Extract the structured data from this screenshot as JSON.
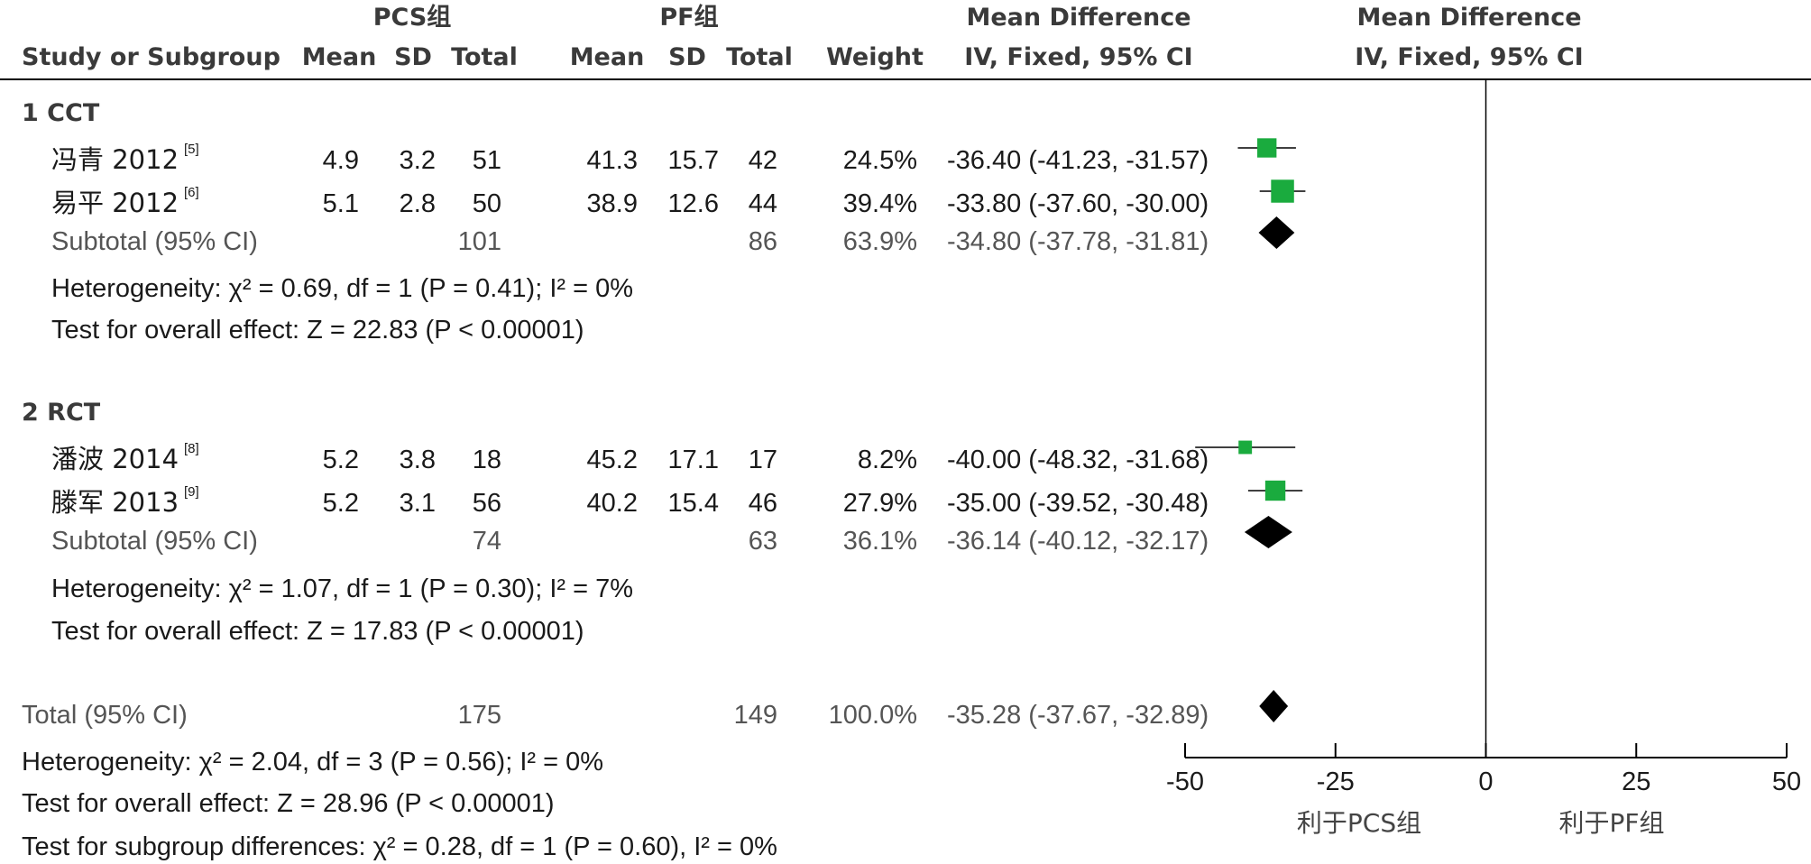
{
  "chart_data": {
    "type": "forest",
    "headers": {
      "group1": "PCS组",
      "group2": "PF组",
      "md_title": "Mean Difference",
      "md_method": "IV, Fixed, 95% CI",
      "plot_title": "Mean Difference",
      "plot_method": "IV, Fixed, 95% CI",
      "study_col": "Study or Subgroup",
      "mean": "Mean",
      "sd": "SD",
      "total": "Total",
      "weight": "Weight"
    },
    "subgroups": [
      {
        "label": "1 CCT",
        "studies": [
          {
            "name": "冯青 2012",
            "ref": "[5]",
            "mean1": "4.9",
            "sd1": "3.2",
            "n1": "51",
            "mean2": "41.3",
            "sd2": "15.7",
            "n2": "42",
            "weight": "24.5%",
            "ci_text": "-36.40 (-41.23, -31.57)",
            "md": -36.4,
            "lo": -41.23,
            "hi": -31.57,
            "w": 24.5
          },
          {
            "name": "易平 2012",
            "ref": "[6]",
            "mean1": "5.1",
            "sd1": "2.8",
            "n1": "50",
            "mean2": "38.9",
            "sd2": "12.6",
            "n2": "44",
            "weight": "39.4%",
            "ci_text": "-33.80 (-37.60, -30.00)",
            "md": -33.8,
            "lo": -37.6,
            "hi": -30.0,
            "w": 39.4
          }
        ],
        "subtotal": {
          "label": "Subtotal (95% CI)",
          "n1": "101",
          "n2": "86",
          "weight": "63.9%",
          "ci_text": "-34.80 (-37.78, -31.81)",
          "md": -34.8,
          "lo": -37.78,
          "hi": -31.81
        },
        "heterogeneity": "Heterogeneity: χ² = 0.69, df = 1 (P = 0.41); I² = 0%",
        "overall": "Test for overall effect: Z = 22.83 (P < 0.00001)"
      },
      {
        "label": "2 RCT",
        "studies": [
          {
            "name": "潘波 2014",
            "ref": "[8]",
            "mean1": "5.2",
            "sd1": "3.8",
            "n1": "18",
            "mean2": "45.2",
            "sd2": "17.1",
            "n2": "17",
            "weight": "8.2%",
            "ci_text": "-40.00 (-48.32, -31.68)",
            "md": -40.0,
            "lo": -48.32,
            "hi": -31.68,
            "w": 8.2
          },
          {
            "name": "滕军 2013",
            "ref": "[9]",
            "mean1": "5.2",
            "sd1": "3.1",
            "n1": "56",
            "mean2": "40.2",
            "sd2": "15.4",
            "n2": "46",
            "weight": "27.9%",
            "ci_text": "-35.00 (-39.52, -30.48)",
            "md": -35.0,
            "lo": -39.52,
            "hi": -30.48,
            "w": 27.9
          }
        ],
        "subtotal": {
          "label": "Subtotal (95% CI)",
          "n1": "74",
          "n2": "63",
          "weight": "36.1%",
          "ci_text": "-36.14 (-40.12, -32.17)",
          "md": -36.14,
          "lo": -40.12,
          "hi": -32.17
        },
        "heterogeneity": "Heterogeneity: χ² = 1.07, df = 1 (P = 0.30); I² = 7%",
        "overall": "Test for overall effect: Z = 17.83 (P < 0.00001)"
      }
    ],
    "total": {
      "label": "Total (95% CI)",
      "n1": "175",
      "n2": "149",
      "weight": "100.0%",
      "ci_text": "-35.28 (-37.67, -32.89)",
      "md": -35.28,
      "lo": -37.67,
      "hi": -32.89
    },
    "footer": [
      "Heterogeneity: χ² = 2.04, df = 3 (P = 0.56); I² = 0%",
      "Test for overall effect: Z = 28.96 (P < 0.00001)",
      "Test for subgroup differences: χ² = 0.28, df = 1 (P = 0.60), I² = 0%"
    ],
    "axis": {
      "xlim": [
        -50,
        50
      ],
      "ticks": [
        "-50",
        "-25",
        "0",
        "25",
        "50"
      ],
      "tick_values": [
        -50,
        -25,
        0,
        25,
        50
      ]
    },
    "favours": {
      "left": "利于PCS组",
      "right": "利于PF组"
    },
    "colors": {
      "square": "#1aab3e",
      "diamond": "#000000",
      "line": "#000000"
    }
  }
}
